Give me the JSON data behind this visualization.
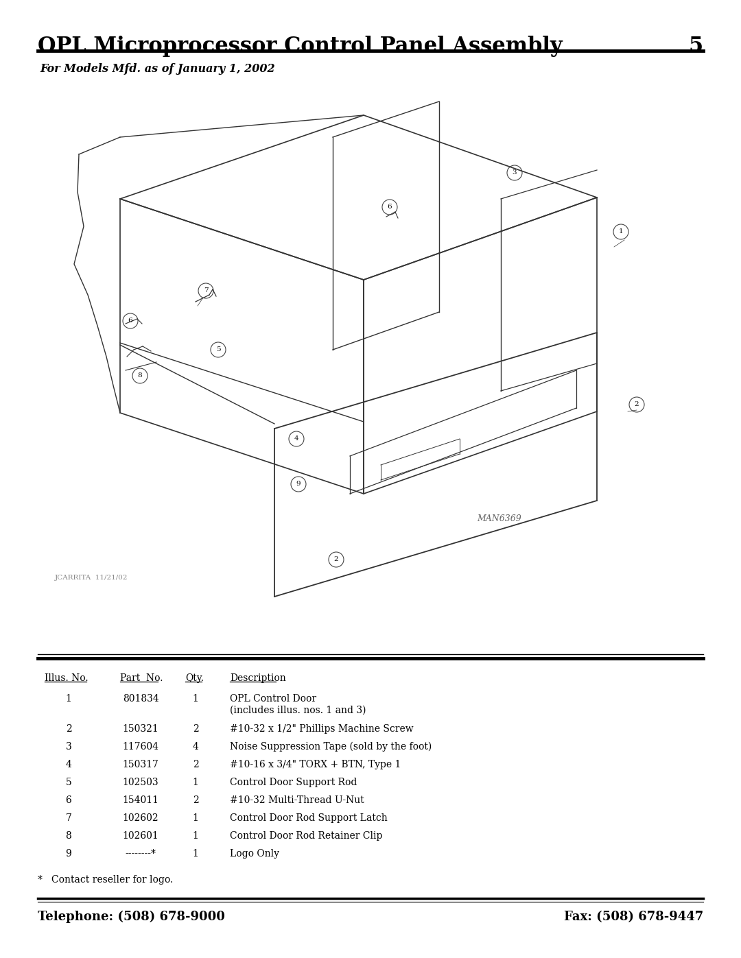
{
  "title": "OPL Microprocessor Control Panel Assembly",
  "page_number": "5",
  "subtitle": "For Models Mfd. as of January 1, 2002",
  "table_headers": [
    "Illus. No.",
    "Part  No.",
    "Qty.",
    "Description"
  ],
  "table_rows": [
    [
      "1",
      "801834",
      "1",
      "OPL Control Door\n(includes illus. nos. 1 and 3)"
    ],
    [
      "2",
      "150321",
      "2",
      "#10-32 x 1/2\" Phillips Machine Screw"
    ],
    [
      "3",
      "117604",
      "4",
      "Noise Suppression Tape (sold by the foot)"
    ],
    [
      "4",
      "150317",
      "2",
      "#10-16 x 3/4\" TORX + BTN, Type 1"
    ],
    [
      "5",
      "102503",
      "1",
      "Control Door Support Rod"
    ],
    [
      "6",
      "154011",
      "2",
      "#10-32 Multi-Thread U-Nut"
    ],
    [
      "7",
      "102602",
      "1",
      "Control Door Rod Support Latch"
    ],
    [
      "8",
      "102601",
      "1",
      "Control Door Rod Retainer Clip"
    ],
    [
      "9",
      "--------*",
      "1",
      "Logo Only"
    ]
  ],
  "footnote": "*   Contact reseller for logo.",
  "telephone": "Telephone: (508) 678-9000",
  "fax": "Fax: (508) 678-9447",
  "man_number": "MAN6369",
  "artist": "JCARRITA  11/21/02",
  "bg_color": "#ffffff",
  "text_color": "#000000"
}
